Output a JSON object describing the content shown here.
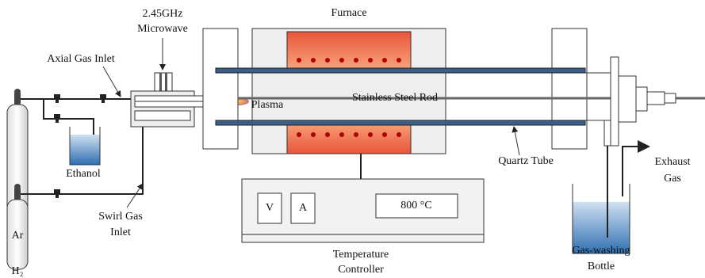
{
  "labels": {
    "microwave": [
      "2.45GHz",
      "Microwave"
    ],
    "furnace": "Furnace",
    "axial_gas_inlet": "Axial Gas Inlet",
    "plasma": "Plasma",
    "rod": "Stainless Steel Rod",
    "exhaust": [
      "Exhaust",
      "Gas"
    ],
    "argon": "Ar",
    "ethanol": "Ethanol",
    "quartz_tube": "Quartz Tube",
    "voltmeter": "V",
    "ammeter": "A",
    "temperature_display": "800 °C",
    "swirl_gas_inlet": [
      "Swirl Gas",
      "Inlet"
    ],
    "gas_washing_bottle": [
      "Gas-washing",
      "Bottle"
    ],
    "hydrogen": "H₂",
    "controller": [
      "Temperature",
      "Controller"
    ]
  }
}
